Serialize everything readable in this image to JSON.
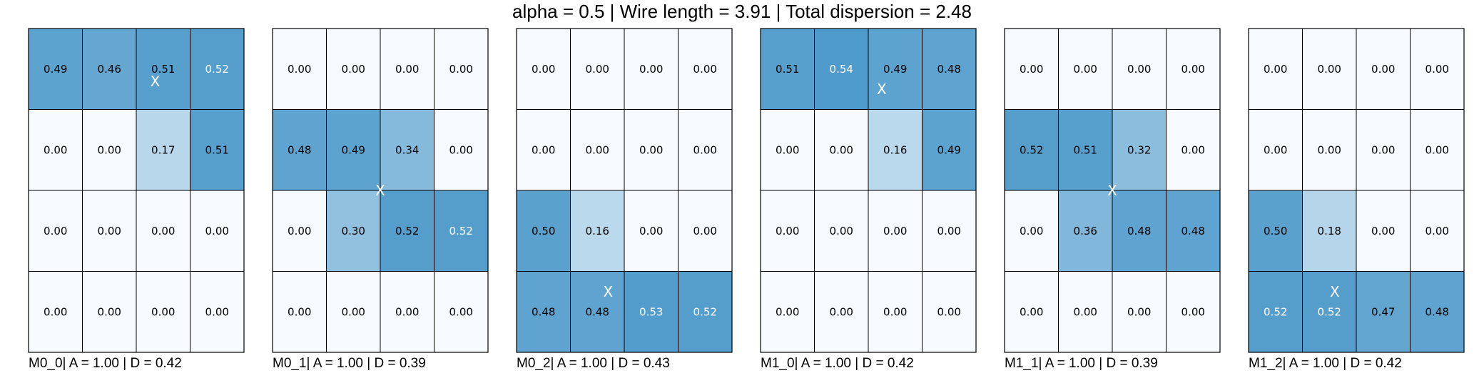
{
  "title": "alpha = 0.5 | Wire length = 3.91 | Total dispersion = 2.48",
  "colors": {
    "low": "#f7fbff",
    "high": "#4a98c9",
    "text_dark": "#000000",
    "text_light": "#ffffff",
    "grid": "#000000"
  },
  "chart_data": {
    "type": "heatmap",
    "title": "alpha = 0.5 | Wire length = 3.91 | Total dispersion = 2.48",
    "rows": 4,
    "cols": 4,
    "value_range": [
      0,
      0.56
    ],
    "grid": true,
    "panels": [
      {
        "caption": "M0_0| A = 1.00 | D = 0.42",
        "values": [
          [
            0.49,
            0.46,
            0.51,
            0.52
          ],
          [
            0.0,
            0.0,
            0.17,
            0.51
          ],
          [
            0.0,
            0.0,
            0.0,
            0.0
          ],
          [
            0.0,
            0.0,
            0.0,
            0.0
          ]
        ],
        "light_text": [
          [
            0,
            3
          ]
        ],
        "labels": [
          [
            "0.49",
            "0.46",
            "0.51",
            "0.52"
          ],
          [
            "0.00",
            "0.00",
            "0.17",
            "0.51"
          ],
          [
            "0.00",
            "0.00",
            "0.00",
            "0.00"
          ],
          [
            "0.00",
            "0.00",
            "0.00",
            "0.00"
          ]
        ],
        "marker": {
          "text": "X",
          "row": 0.65,
          "col": 2.35,
          "color": "#ffffff"
        }
      },
      {
        "caption": "M0_1| A = 1.00 | D = 0.39",
        "values": [
          [
            0.0,
            0.0,
            0.0,
            0.0
          ],
          [
            0.48,
            0.49,
            0.34,
            0.0
          ],
          [
            0.0,
            0.3,
            0.52,
            0.52
          ],
          [
            0.0,
            0.0,
            0.0,
            0.0
          ]
        ],
        "light_text": [
          [
            2,
            3
          ]
        ],
        "labels": [
          [
            "0.00",
            "0.00",
            "0.00",
            "0.00"
          ],
          [
            "0.48",
            "0.49",
            "0.34",
            "0.00"
          ],
          [
            "0.00",
            "0.30",
            "0.52",
            "0.52"
          ],
          [
            "0.00",
            "0.00",
            "0.00",
            "0.00"
          ]
        ],
        "marker": {
          "text": "X",
          "row": 2.0,
          "col": 2.0,
          "color": "#ffffff"
        }
      },
      {
        "caption": "M0_2| A = 1.00 | D = 0.43",
        "values": [
          [
            0.0,
            0.0,
            0.0,
            0.0
          ],
          [
            0.0,
            0.0,
            0.0,
            0.0
          ],
          [
            0.5,
            0.16,
            0.0,
            0.0
          ],
          [
            0.48,
            0.48,
            0.53,
            0.52
          ]
        ],
        "light_text": [
          [
            3,
            2
          ],
          [
            3,
            3
          ]
        ],
        "labels": [
          [
            "0.00",
            "0.00",
            "0.00",
            "0.00"
          ],
          [
            "0.00",
            "0.00",
            "0.00",
            "0.00"
          ],
          [
            "0.50",
            "0.16",
            "0.00",
            "0.00"
          ],
          [
            "0.48",
            "0.48",
            "0.53",
            "0.52"
          ]
        ],
        "marker": {
          "text": "X",
          "row": 3.25,
          "col": 1.7,
          "color": "#ffffff"
        }
      },
      {
        "caption": "M1_0| A = 1.00 | D = 0.42",
        "values": [
          [
            0.51,
            0.54,
            0.49,
            0.48
          ],
          [
            0.0,
            0.0,
            0.16,
            0.49
          ],
          [
            0.0,
            0.0,
            0.0,
            0.0
          ],
          [
            0.0,
            0.0,
            0.0,
            0.0
          ]
        ],
        "light_text": [
          [
            0,
            1
          ]
        ],
        "labels": [
          [
            "0.51",
            "0.54",
            "0.49",
            "0.48"
          ],
          [
            "0.00",
            "0.00",
            "0.16",
            "0.49"
          ],
          [
            "0.00",
            "0.00",
            "0.00",
            "0.00"
          ],
          [
            "0.00",
            "0.00",
            "0.00",
            "0.00"
          ]
        ],
        "marker": {
          "text": "X",
          "row": 0.75,
          "col": 2.25,
          "color": "#ffffff"
        }
      },
      {
        "caption": "M1_1| A = 1.00 | D = 0.39",
        "values": [
          [
            0.0,
            0.0,
            0.0,
            0.0
          ],
          [
            0.52,
            0.51,
            0.32,
            0.0
          ],
          [
            0.0,
            0.36,
            0.48,
            0.48
          ],
          [
            0.0,
            0.0,
            0.0,
            0.0
          ]
        ],
        "light_text": [],
        "labels": [
          [
            "0.00",
            "0.00",
            "0.00",
            "0.00"
          ],
          [
            "0.52",
            "0.51",
            "0.32",
            "0.00"
          ],
          [
            "0.00",
            "0.36",
            "0.48",
            "0.48"
          ],
          [
            "0.00",
            "0.00",
            "0.00",
            "0.00"
          ]
        ],
        "marker": {
          "text": "X",
          "row": 2.0,
          "col": 2.0,
          "color": "#ffffff"
        }
      },
      {
        "caption": "M1_2| A = 1.00 | D = 0.42",
        "values": [
          [
            0.0,
            0.0,
            0.0,
            0.0
          ],
          [
            0.0,
            0.0,
            0.0,
            0.0
          ],
          [
            0.5,
            0.18,
            0.0,
            0.0
          ],
          [
            0.52,
            0.52,
            0.47,
            0.48
          ]
        ],
        "light_text": [
          [
            3,
            0
          ],
          [
            3,
            1
          ]
        ],
        "labels": [
          [
            "0.00",
            "0.00",
            "0.00",
            "0.00"
          ],
          [
            "0.00",
            "0.00",
            "0.00",
            "0.00"
          ],
          [
            "0.50",
            "0.18",
            "0.00",
            "0.00"
          ],
          [
            "0.52",
            "0.52",
            "0.47",
            "0.48"
          ]
        ],
        "marker": {
          "text": "X",
          "row": 3.25,
          "col": 1.6,
          "color": "#ffffff"
        }
      }
    ]
  }
}
